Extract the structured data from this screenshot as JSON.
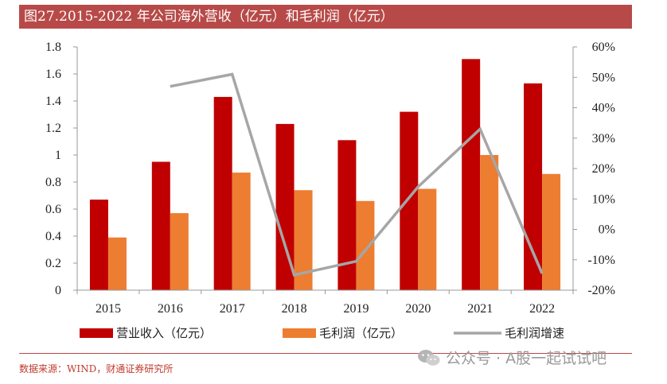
{
  "header": {
    "title": "图27.2015-2022 年公司海外营收（亿元）和毛利润（亿元）"
  },
  "chart_data": {
    "type": "bar",
    "categories": [
      "2015",
      "2016",
      "2017",
      "2018",
      "2019",
      "2020",
      "2021",
      "2022"
    ],
    "series": [
      {
        "name": "营业收入（亿元）",
        "kind": "bar",
        "axis": "left",
        "color": "#c00000",
        "values": [
          0.67,
          0.95,
          1.43,
          1.23,
          1.11,
          1.32,
          1.71,
          1.53
        ]
      },
      {
        "name": "毛利润（亿元）",
        "kind": "bar",
        "axis": "left",
        "color": "#ed7d31",
        "values": [
          0.39,
          0.57,
          0.87,
          0.74,
          0.66,
          0.75,
          1.0,
          0.86
        ]
      },
      {
        "name": "毛利润增速",
        "kind": "line",
        "axis": "right",
        "color": "#a6a6a6",
        "values": [
          null,
          47,
          51,
          -15,
          -10.5,
          14,
          33,
          -14.5
        ]
      }
    ],
    "y_left": {
      "ylim": [
        0,
        1.8
      ],
      "ticks": [
        0,
        0.2,
        0.4,
        0.6,
        0.8,
        1,
        1.2,
        1.4,
        1.6,
        1.8
      ],
      "tick_labels": [
        "0",
        "0.2",
        "0.4",
        "0.6",
        "0.8",
        "1",
        "1.2",
        "1.4",
        "1.6",
        "1.8"
      ]
    },
    "y_right": {
      "ylim": [
        -20,
        60
      ],
      "ticks": [
        -20,
        -10,
        0,
        10,
        20,
        30,
        40,
        50,
        60
      ],
      "tick_labels": [
        "-20%",
        "-10%",
        "0%",
        "10%",
        "20%",
        "30%",
        "40%",
        "50%",
        "60%"
      ]
    },
    "legend_position": "bottom",
    "grid": false
  },
  "footer": {
    "source": "数据来源：WIND，财通证券研究所",
    "watermark": "公众号 · A股一起试试吧"
  }
}
